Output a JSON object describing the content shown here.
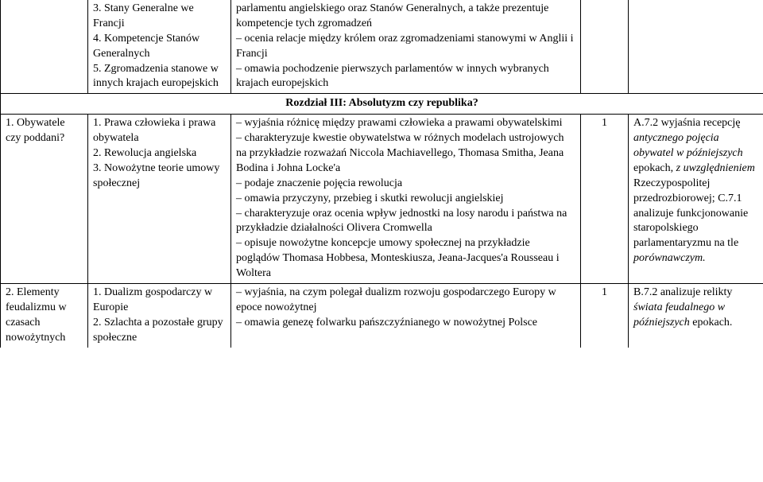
{
  "row0": {
    "col2": "3. Stany Generalne we Francji\n4. Kompetencje Stanów Generalnych\n5. Zgromadzenia stanowe w innych krajach europejskich",
    "col3": "parlamentu angielskiego oraz Stanów Generalnych, a także prezentuje kompetencje tych zgromadzeń\n– ocenia relacje między królem oraz zgromadzeniami stanowymi w Anglii i Francji\n– omawia pochodzenie pierwszych parlamentów w innych wybranych krajach europejskich"
  },
  "section_header": "Rozdział III: Absolutyzm czy republika?",
  "row1": {
    "col1": "1. Obywatele czy poddani?",
    "col2": "1. Prawa człowieka i prawa obywatela\n2. Rewolucja angielska\n3. Nowożytne teorie umowy społecznej",
    "col3": "– wyjaśnia różnicę między prawami człowieka a prawami obywatelskimi\n– charakteryzuje kwestie obywatelstwa w różnych modelach ustrojowych na przykładzie rozważań Niccola Machiavellego, Thomasa Smitha, Jeana Bodina i Johna Locke'a\n– podaje znaczenie pojęcia rewolucja\n– omawia przyczyny, przebieg i skutki rewolucji angielskiej\n– charakteryzuje oraz ocenia wpływ jednostki na losy narodu i państwa na przykładzie działalności Olivera Cromwella\n– opisuje nowożytne koncepcje umowy społecznej na przykładzie poglądów Thomasa Hobbesa, Monteskiusza, Jeana-Jacques'a Rousseau i Woltera",
    "col4": "1",
    "col5_parts": [
      {
        "t": "A.7.2 wyjaśnia recepcję ",
        "i": false
      },
      {
        "t": "antycznego pojęcia obywatel w późniejszych",
        "i": true
      },
      {
        "t": " epokach, ",
        "i": false
      },
      {
        "t": "z uwzględnieniem",
        "i": true
      },
      {
        "t": " Rzeczypospolitej przedrozbiorowej; C.7.1 analizuje funkcjonowanie staropolskiego parlamentaryzmu na tle ",
        "i": false
      },
      {
        "t": "porównawczym.",
        "i": true
      }
    ]
  },
  "row2": {
    "col1": "2. Elementy feudalizmu w czasach nowożytnych",
    "col2": "1. Dualizm gospodarczy w Europie\n2. Szlachta a pozostałe grupy społeczne",
    "col3": "– wyjaśnia, na czym polegał dualizm rozwoju gospodarczego Europy w epoce nowożytnej\n– omawia genezę folwarku pańszczyźnianego w nowożytnej Polsce",
    "col4": "1",
    "col5_parts": [
      {
        "t": "B.7.2 analizuje relikty ",
        "i": false
      },
      {
        "t": "świata feudalnego w późniejszych",
        "i": true
      },
      {
        "t": " epokach.",
        "i": false
      }
    ]
  }
}
